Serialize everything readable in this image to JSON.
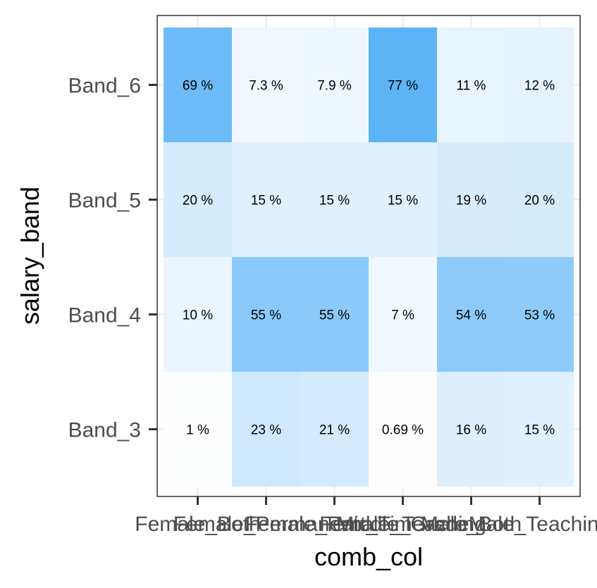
{
  "chart_data": {
    "type": "heatmap",
    "x": [
      "Female_Both",
      "Female_Part_Time",
      "Female_Permanent",
      "Female_Teaching",
      "Male_Both",
      "Male_Teaching"
    ],
    "x_tick_labels_visible": [
      "Female_Both",
      "Female_Permanent",
      "Female_Part_Time",
      "Female_Teaching",
      "Middle_Grade",
      "Male_Both",
      "Male_Teaching"
    ],
    "y": [
      "Band_3",
      "Band_4",
      "Band_5",
      "Band_6"
    ],
    "values": [
      [
        1,
        23,
        21,
        0.69,
        16,
        15
      ],
      [
        10,
        55,
        55,
        7,
        54,
        53
      ],
      [
        20,
        15,
        15,
        15,
        19,
        20
      ],
      [
        69,
        7.3,
        7.9,
        77,
        11,
        12
      ]
    ],
    "cell_labels": [
      [
        "1 %",
        "23 %",
        "21 %",
        "0.69 %",
        "16 %",
        "15 %"
      ],
      [
        "10 %",
        "55 %",
        "55 %",
        "7 %",
        "54 %",
        "53 %"
      ],
      [
        "20 %",
        "15 %",
        "15 %",
        "15 %",
        "19 %",
        "20 %"
      ],
      [
        "69 %",
        "7.3 %",
        "7.9 %",
        "77 %",
        "11 %",
        "12 %"
      ]
    ],
    "xlabel": "comb_col",
    "ylabel": "salary_band",
    "color_scale": {
      "low": "#ffffff",
      "high": "#56b1f7"
    },
    "value_range": [
      0,
      80
    ],
    "grid": true,
    "panel_border": true
  }
}
